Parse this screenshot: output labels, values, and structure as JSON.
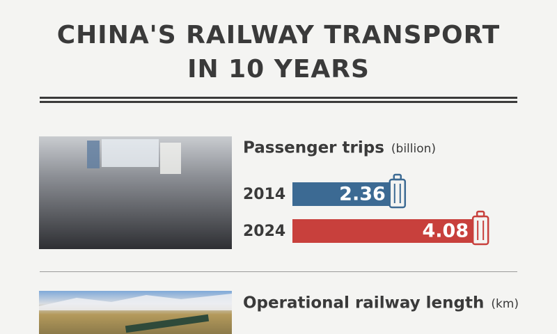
{
  "header": {
    "title_lines": [
      "CHINA'S RAILWAY TRANSPORT",
      "IN 10 YEARS"
    ]
  },
  "chart_data": [
    {
      "type": "bar",
      "title": "Passenger trips",
      "subtitle": "(billion)",
      "categories": [
        "2014",
        "2024"
      ],
      "values": [
        2.36,
        4.08
      ],
      "colors": [
        "#3c6a93",
        "#c8403c"
      ]
    },
    {
      "type": "bar",
      "title": "Operational railway length",
      "subtitle": "(km)"
    }
  ]
}
